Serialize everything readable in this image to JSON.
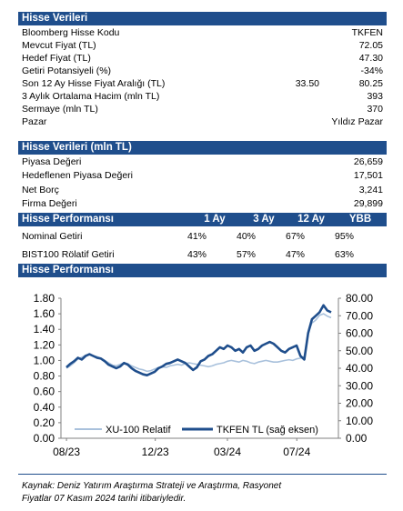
{
  "section1": {
    "title": "Hisse Verileri",
    "rows": [
      {
        "label": "Bloomberg Hisse Kodu",
        "value": "TKFEN"
      },
      {
        "label": "Mevcut Fiyat (TL)",
        "value": "72.05"
      },
      {
        "label": "Hedef Fiyat (TL)",
        "value": "47.30"
      },
      {
        "label": "Getiri Potansiyeli (%)",
        "value": "-34%"
      },
      {
        "label": "Son 12 Ay Hisse Fiyat Aralığı (TL)",
        "mid": "33.50",
        "value": "80.25"
      },
      {
        "label": "3 Aylık Ortalama Hacim (mln TL)",
        "value": "393"
      },
      {
        "label": "Sermaye (mln TL)",
        "value": "370"
      },
      {
        "label": "Pazar",
        "value": "Yıldız Pazar"
      }
    ]
  },
  "section2": {
    "title": "Hisse Verileri (mln TL)",
    "rows": [
      {
        "label": "Piyasa Değeri",
        "value": "26,659"
      },
      {
        "label": "Hedeflenen Piyasa Değeri",
        "value": "17,501"
      },
      {
        "label": "Net Borç",
        "value": "3,241"
      },
      {
        "label": "Firma Değeri",
        "value": "29,899"
      }
    ]
  },
  "section3": {
    "title": "Hisse Performansı",
    "columns": [
      "1 Ay",
      "3 Ay",
      "12 Ay",
      "YBB"
    ],
    "rows": [
      {
        "label": "Nominal Getiri",
        "values": [
          "41%",
          "40%",
          "67%",
          "95%"
        ]
      },
      {
        "label": "BIST100 Rölatif Getiri",
        "values": [
          "43%",
          "57%",
          "47%",
          "63%"
        ]
      }
    ]
  },
  "section4": {
    "title": "Hisse Performansı"
  },
  "chart_data": {
    "type": "line",
    "x_tick_labels": [
      "08/23",
      "12/23",
      "03/24",
      "07/24"
    ],
    "y_left": {
      "ticks": [
        "0.00",
        "0.20",
        "0.40",
        "0.60",
        "0.80",
        "1.00",
        "1.20",
        "1.40",
        "1.60",
        "1.80"
      ],
      "ylim": [
        0,
        1.8
      ]
    },
    "y_right": {
      "ticks": [
        "0.00",
        "10.00",
        "20.00",
        "30.00",
        "40.00",
        "50.00",
        "60.00",
        "70.00",
        "80.00"
      ],
      "ylim": [
        0,
        80
      ]
    },
    "grid": false,
    "legend_position": "bottom",
    "series": [
      {
        "name": "XU-100 Relatif",
        "axis": "left",
        "color": "#a9c1dc",
        "values": [
          0.9,
          0.93,
          0.97,
          1.02,
          1.04,
          1.07,
          1.08,
          1.06,
          1.05,
          1.03,
          1.0,
          0.97,
          0.94,
          0.93,
          0.95,
          0.97,
          0.96,
          0.93,
          0.91,
          0.89,
          0.88,
          0.86,
          0.87,
          0.89,
          0.91,
          0.92,
          0.91,
          0.93,
          0.94,
          0.95,
          0.94,
          0.96,
          0.97,
          0.96,
          0.95,
          0.94,
          0.93,
          0.92,
          0.93,
          0.95,
          0.96,
          0.97,
          0.99,
          1.0,
          0.99,
          0.98,
          1.0,
          0.99,
          0.97,
          0.96,
          0.98,
          0.99,
          1.0,
          0.99,
          0.98,
          0.98,
          0.99,
          1.0,
          1.01,
          1.0,
          1.02,
          1.03,
          1.05,
          1.35,
          1.48,
          1.52,
          1.58,
          1.6,
          1.57,
          1.55
        ]
      },
      {
        "name": "TKFEN TL (sağ eksen)",
        "axis": "right",
        "color": "#1f4e8c",
        "values": [
          40.5,
          42.5,
          44.0,
          46.0,
          45.0,
          47.0,
          48.0,
          47.0,
          46.0,
          45.5,
          44.0,
          42.0,
          41.0,
          40.0,
          41.0,
          43.0,
          42.0,
          40.0,
          38.5,
          37.5,
          36.5,
          36.0,
          37.0,
          38.0,
          40.0,
          41.0,
          42.5,
          43.0,
          44.0,
          45.0,
          44.0,
          43.0,
          41.0,
          39.0,
          40.5,
          44.0,
          45.0,
          47.0,
          48.0,
          50.0,
          52.0,
          51.0,
          53.0,
          52.0,
          50.0,
          51.0,
          49.0,
          52.0,
          53.0,
          50.0,
          51.0,
          53.0,
          54.0,
          55.0,
          54.0,
          52.0,
          50.0,
          49.0,
          51.0,
          52.0,
          53.0,
          47.0,
          45.0,
          60.0,
          68.0,
          70.0,
          72.0,
          76.0,
          73.0,
          72.0
        ]
      }
    ]
  },
  "source_note": {
    "line1": "Kaynak: Deniz Yatırım Araştırma Strateji ve Araştırma, Rasyonet",
    "line2": "Fiyatlar 07 Kasım 2024 tarihi itibariyledir."
  }
}
